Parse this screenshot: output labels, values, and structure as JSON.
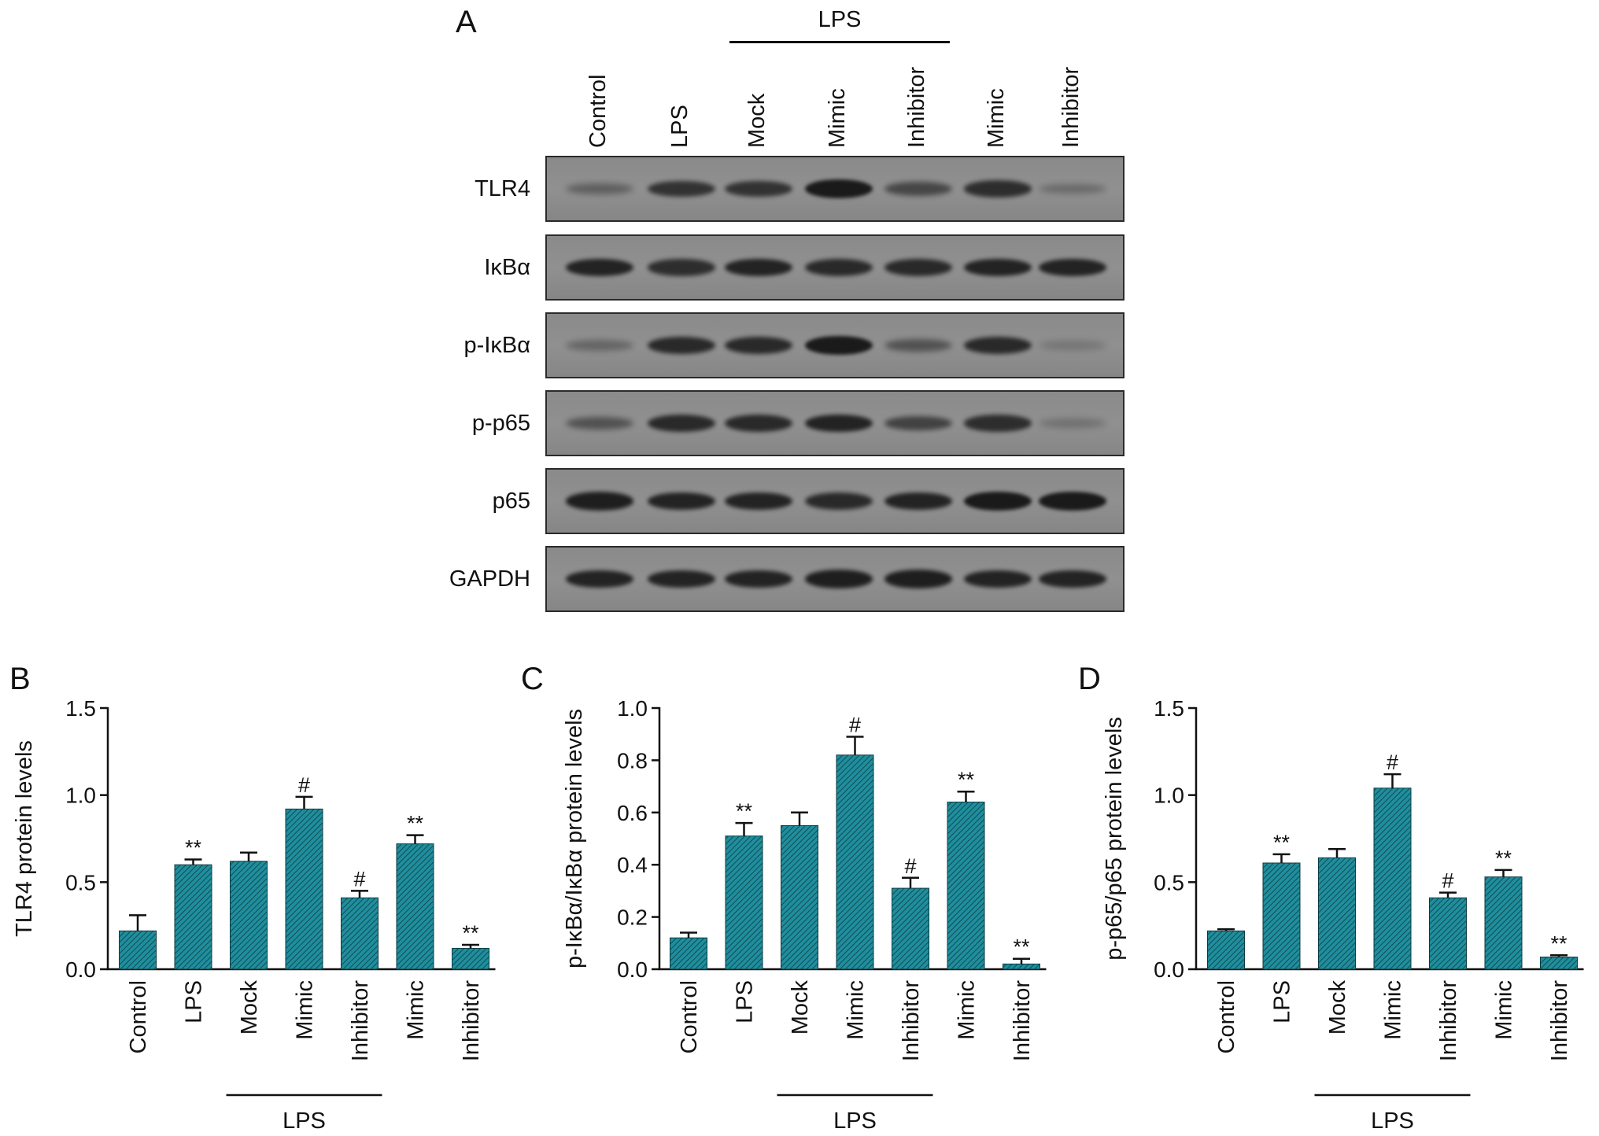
{
  "figure": {
    "panel_A": {
      "letter": "A",
      "lps_label": "LPS",
      "lanes": [
        "Control",
        "LPS",
        "Mock",
        "Mimic",
        "Inhibitor",
        "Mimic",
        "Inhibitor"
      ],
      "rows": [
        "TLR4",
        "IκBα",
        "p-IκBα",
        "p-p65",
        "p65",
        "GAPDH"
      ],
      "band_intensity": [
        [
          0.3,
          0.75,
          0.75,
          1.0,
          0.55,
          0.8,
          0.2
        ],
        [
          0.9,
          0.8,
          0.9,
          0.85,
          0.85,
          0.9,
          0.9
        ],
        [
          0.25,
          0.85,
          0.85,
          1.0,
          0.45,
          0.85,
          0.1
        ],
        [
          0.45,
          0.85,
          0.85,
          0.9,
          0.6,
          0.8,
          0.15
        ],
        [
          0.95,
          0.9,
          0.9,
          0.85,
          0.9,
          1.0,
          1.0
        ],
        [
          0.9,
          0.9,
          0.9,
          0.95,
          0.95,
          0.9,
          0.9
        ]
      ]
    },
    "colors": {
      "bar_fill": "#1f8e9d",
      "bar_hatch": "#0d3b42",
      "blot_bg": "#909090",
      "band": "#1a1a1a"
    }
  },
  "chart_data": [
    {
      "panel": "B",
      "type": "bar",
      "categories": [
        "Control",
        "LPS",
        "Mock",
        "Mimic",
        "Inhibitor",
        "Mimic",
        "Inhibitor"
      ],
      "values": [
        0.22,
        0.6,
        0.62,
        0.92,
        0.41,
        0.72,
        0.12
      ],
      "errors": [
        0.09,
        0.03,
        0.05,
        0.07,
        0.04,
        0.05,
        0.02
      ],
      "annotations": [
        "",
        "**",
        "",
        "#",
        "#",
        "**",
        "**"
      ],
      "ylabel": "TLR4 protein levels",
      "ylim": [
        0,
        1.5
      ],
      "yticks": [
        "0.0",
        "0.5",
        "1.0",
        "1.5"
      ],
      "group_label": "LPS",
      "group_span": [
        2,
        4
      ]
    },
    {
      "panel": "C",
      "type": "bar",
      "categories": [
        "Control",
        "LPS",
        "Mock",
        "Mimic",
        "Inhibitor",
        "Mimic",
        "Inhibitor"
      ],
      "values": [
        0.12,
        0.51,
        0.55,
        0.82,
        0.31,
        0.64,
        0.02
      ],
      "errors": [
        0.02,
        0.05,
        0.05,
        0.07,
        0.04,
        0.04,
        0.02
      ],
      "annotations": [
        "",
        "**",
        "",
        "#",
        "#",
        "**",
        "**"
      ],
      "ylabel": "p-IκBα/IκBα protein levels",
      "ylim": [
        0,
        1.0
      ],
      "yticks": [
        "0.0",
        "0.2",
        "0.4",
        "0.6",
        "0.8",
        "1.0"
      ],
      "group_label": "LPS",
      "group_span": [
        2,
        4
      ]
    },
    {
      "panel": "D",
      "type": "bar",
      "categories": [
        "Control",
        "LPS",
        "Mock",
        "Mimic",
        "Inhibitor",
        "Mimic",
        "Inhibitor"
      ],
      "values": [
        0.22,
        0.61,
        0.64,
        1.04,
        0.41,
        0.53,
        0.07
      ],
      "errors": [
        0.01,
        0.05,
        0.05,
        0.08,
        0.03,
        0.04,
        0.01
      ],
      "annotations": [
        "",
        "**",
        "",
        "#",
        "#",
        "**",
        "**"
      ],
      "ylabel": "p-p65/p65 protein levels",
      "ylim": [
        0,
        1.5
      ],
      "yticks": [
        "0.0",
        "0.5",
        "1.0",
        "1.5"
      ],
      "group_label": "LPS",
      "group_span": [
        2,
        4
      ]
    }
  ]
}
